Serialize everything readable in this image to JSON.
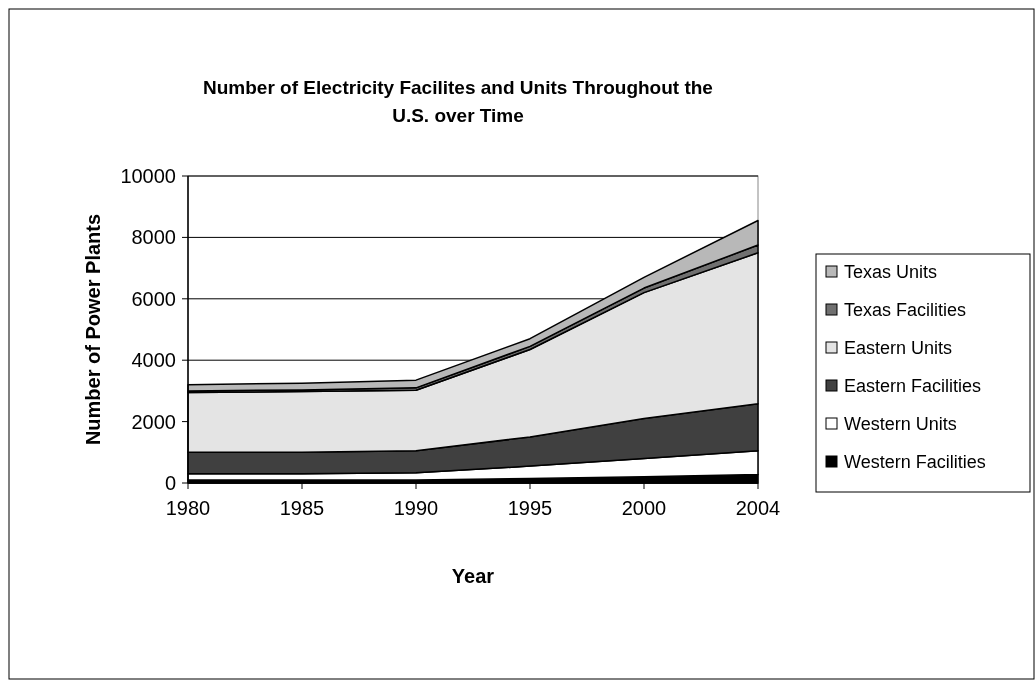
{
  "chart_data": {
    "type": "area",
    "stacked": true,
    "title": "Number of Electricity Facilites and Units Throughout the U.S. over Time",
    "xlabel": "Year",
    "ylabel": "Number of Power Plants",
    "categories": [
      "1980",
      "1985",
      "1990",
      "1995",
      "2000",
      "2004"
    ],
    "ylim": [
      0,
      10000
    ],
    "yticks": [
      0,
      2000,
      4000,
      6000,
      8000,
      10000
    ],
    "grid": "y",
    "legend": "right",
    "series": [
      {
        "name": "Western Facilities",
        "color": "#000000",
        "values": [
          100,
          100,
          100,
          150,
          200,
          280
        ]
      },
      {
        "name": "Western Units",
        "color": "#ffffff",
        "values": [
          200,
          200,
          230,
          400,
          600,
          770
        ]
      },
      {
        "name": "Eastern Facilities",
        "color": "#404040",
        "values": [
          700,
          700,
          720,
          950,
          1300,
          1530
        ]
      },
      {
        "name": "Eastern Units",
        "color": "#e4e4e4",
        "values": [
          1950,
          1980,
          1970,
          2850,
          4100,
          4920
        ]
      },
      {
        "name": "Texas Facilities",
        "color": "#707070",
        "values": [
          50,
          50,
          80,
          100,
          150,
          250
        ]
      },
      {
        "name": "Texas Units",
        "color": "#b8b8b8",
        "values": [
          200,
          220,
          250,
          250,
          350,
          800
        ]
      }
    ]
  }
}
